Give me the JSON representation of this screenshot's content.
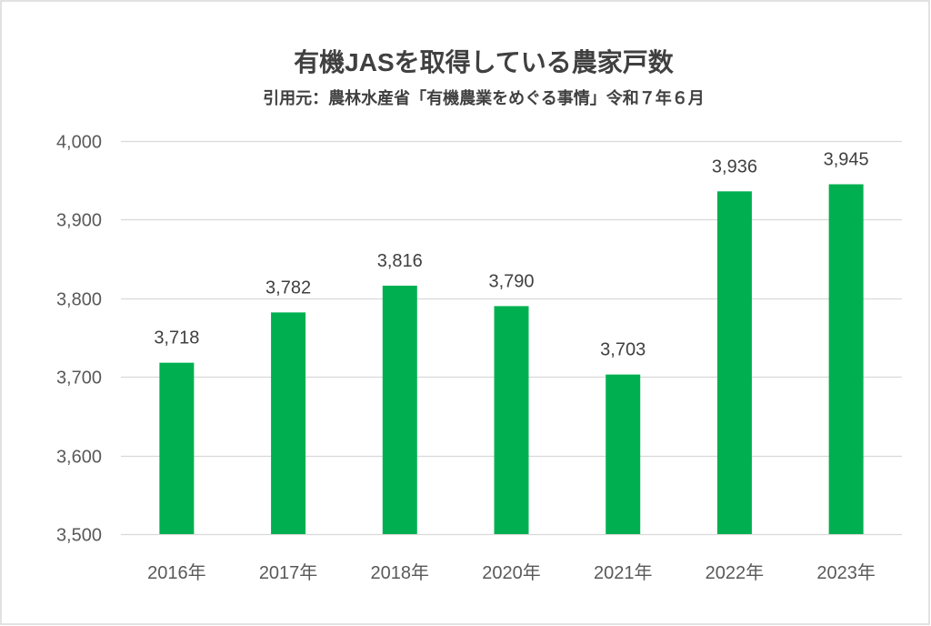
{
  "chart_data": {
    "type": "bar",
    "title": "有機JASを取得している農家戸数",
    "subtitle": "引用元：農林水産省「有機農業をめぐる事情」令和７年６月",
    "xlabel": "",
    "ylabel": "",
    "categories": [
      "2016年",
      "2017年",
      "2018年",
      "2020年",
      "2021年",
      "2022年",
      "2023年"
    ],
    "values": [
      3718,
      3782,
      3816,
      3790,
      3703,
      3936,
      3945
    ],
    "data_labels": [
      "3,718",
      "3,782",
      "3,816",
      "3,790",
      "3,703",
      "3,936",
      "3,945"
    ],
    "y_ticks": [
      3500,
      3600,
      3700,
      3800,
      3900,
      4000
    ],
    "y_tick_labels": [
      "3,500",
      "3,600",
      "3,700",
      "3,800",
      "3,900",
      "4,000"
    ],
    "ylim": [
      3500,
      4000
    ],
    "grid": true,
    "legend": "none"
  },
  "colors": {
    "bar": "#00B050",
    "grid": "#D9D9D9",
    "axis_text": "#595959",
    "title_text": "#404040",
    "border": "#D9D9D9"
  }
}
